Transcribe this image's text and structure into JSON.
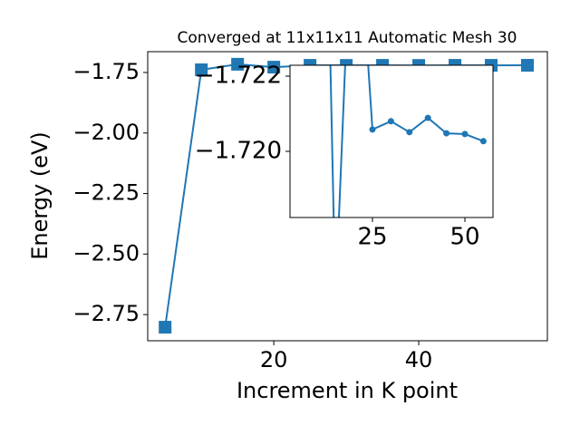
{
  "chart_data": {
    "type": "line",
    "title": "Converged at 11x11x11 Automatic Mesh 30",
    "xlabel": "Increment in K point",
    "ylabel": "Energy (eV)",
    "x": [
      5,
      10,
      15,
      20,
      25,
      30,
      35,
      40,
      45,
      50,
      55
    ],
    "series": [
      {
        "color": "#1f77b4",
        "values": [
          -2.802,
          -1.739,
          -1.716,
          -1.728,
          -1.72058,
          -1.7208,
          -1.72051,
          -1.72089,
          -1.72048,
          -1.72046,
          -1.72027
        ]
      }
    ],
    "xlim": [
      2.6,
      57.75
    ],
    "ylim": [
      -2.858,
      -1.664
    ],
    "xticks": [
      20,
      40
    ],
    "yticks": [
      {
        "value": -2.75,
        "label": "−2.75"
      },
      {
        "value": -2.5,
        "label": "−2.50"
      },
      {
        "value": -2.25,
        "label": "−2.25"
      },
      {
        "value": -2.0,
        "label": "−2.00"
      },
      {
        "value": -1.75,
        "label": "−1.75"
      }
    ],
    "inset": {
      "xlim": [
        2.7,
        57.6
      ],
      "ylim": [
        -1.71824,
        -1.72229
      ],
      "xticks": [
        25,
        50
      ],
      "yticks": [
        {
          "value": -1.722,
          "label": "−1.722"
        },
        {
          "value": -1.72,
          "label": "−1.720"
        }
      ]
    }
  }
}
